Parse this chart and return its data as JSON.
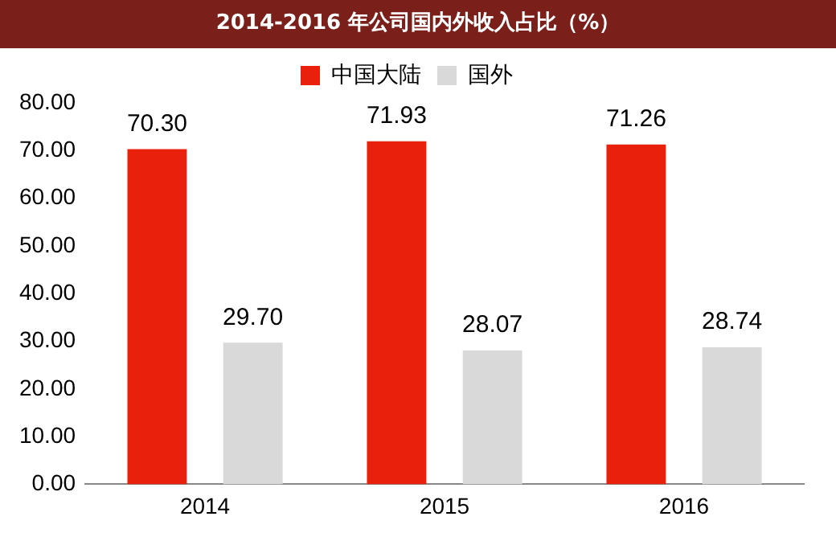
{
  "chart_data": {
    "type": "bar",
    "title": "2014-2016 年公司国内外收入占比（%）",
    "categories": [
      "2014",
      "2015",
      "2016"
    ],
    "series": [
      {
        "name": "中国大陆",
        "color": "#e8200c",
        "values": [
          70.3,
          71.93,
          71.26
        ],
        "value_labels": [
          "70.30",
          "71.93",
          "71.26"
        ]
      },
      {
        "name": "国外",
        "color": "#d9d9d9",
        "values": [
          29.7,
          28.07,
          28.74
        ],
        "value_labels": [
          "29.70",
          "28.07",
          "28.74"
        ]
      }
    ],
    "ylim": [
      0,
      80
    ],
    "yticks": [
      {
        "value": 0,
        "label": "0.00"
      },
      {
        "value": 10,
        "label": "10.00"
      },
      {
        "value": 20,
        "label": "20.00"
      },
      {
        "value": 30,
        "label": "30.00"
      },
      {
        "value": 40,
        "label": "40.00"
      },
      {
        "value": 50,
        "label": "50.00"
      },
      {
        "value": 60,
        "label": "60.00"
      },
      {
        "value": 70,
        "label": "70.00"
      },
      {
        "value": 80,
        "label": "80.00"
      }
    ],
    "grid": false,
    "legend": "top"
  }
}
